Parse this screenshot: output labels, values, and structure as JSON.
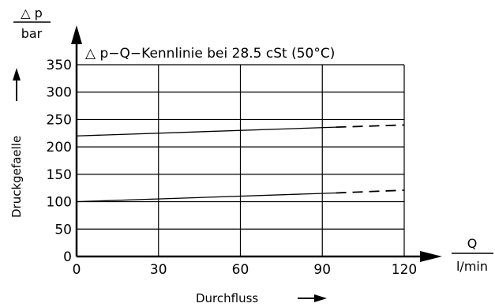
{
  "chart_data": {
    "type": "line",
    "title": "△ p−Q−Kennlinie bei 28.5 cSt (50°C)",
    "xlabel": "Durchfluss",
    "ylabel": "Druckgefaelle",
    "x_unit": {
      "symbol": "Q",
      "unit": "l/min"
    },
    "y_unit": {
      "symbol": "△ p",
      "unit": "bar"
    },
    "xlim": [
      0,
      120
    ],
    "ylim": [
      0,
      350
    ],
    "x_ticks": [
      "0",
      "30",
      "60",
      "90",
      "120"
    ],
    "y_ticks": [
      "0",
      "50",
      "100",
      "150",
      "200",
      "250",
      "300",
      "350"
    ],
    "grid": true,
    "series": [
      {
        "solid": [
          [
            0,
            220
          ],
          [
            95,
            236
          ]
        ],
        "dashed": [
          [
            95,
            236
          ],
          [
            120,
            240
          ]
        ]
      },
      {
        "solid": [
          [
            0,
            100
          ],
          [
            95,
            116
          ]
        ],
        "dashed": [
          [
            95,
            116
          ],
          [
            120,
            121
          ]
        ]
      }
    ]
  }
}
